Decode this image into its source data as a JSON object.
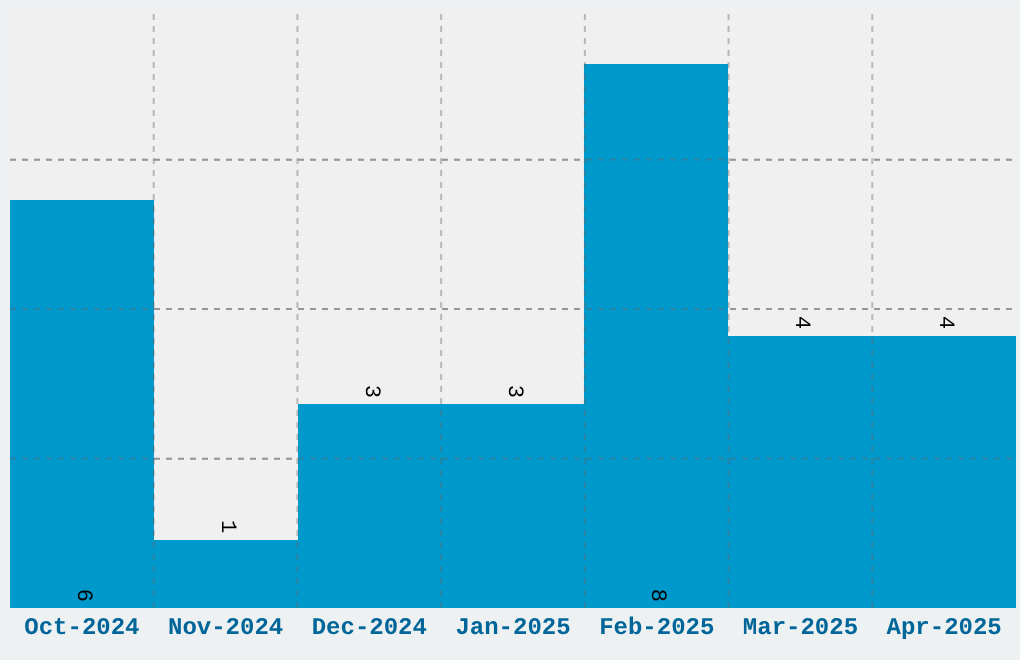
{
  "chart_data": {
    "type": "bar",
    "categories": [
      "Oct-2024",
      "Nov-2024",
      "Dec-2024",
      "Jan-2025",
      "Feb-2025",
      "Mar-2025",
      "Apr-2025"
    ],
    "values": [
      6,
      1,
      3,
      3,
      8,
      4,
      4
    ],
    "color": "#0099cc",
    "ylim": [
      0,
      8.8
    ],
    "yticks": [
      {
        "value": 2.2,
        "label": null
      },
      {
        "value": 4.4,
        "label": null
      },
      {
        "value": 6.6,
        "label": null
      }
    ],
    "tick_labels": "x",
    "grid": true,
    "data_labels": true,
    "legend": false
  }
}
